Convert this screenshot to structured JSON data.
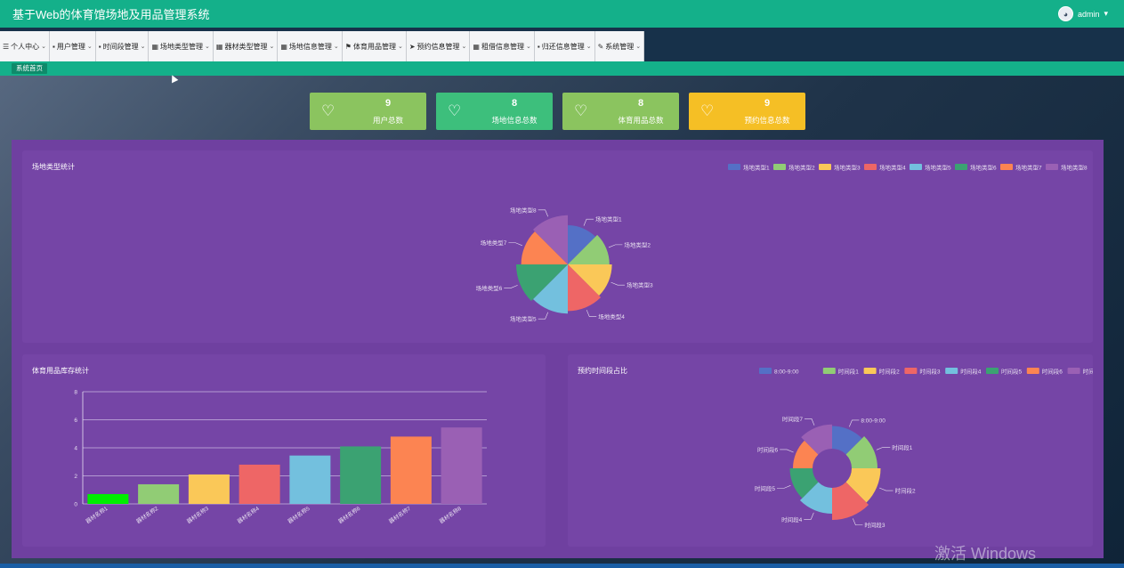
{
  "header": {
    "title": "基于Web的体育馆场地及用品管理系统",
    "user": "admin",
    "user_chevron": "▾"
  },
  "nav": [
    {
      "icon": "☰",
      "label": "个人中心"
    },
    {
      "icon": "▪",
      "label": "用户管理"
    },
    {
      "icon": "▪",
      "label": "时间段管理"
    },
    {
      "icon": "▦",
      "label": "场地类型管理"
    },
    {
      "icon": "▦",
      "label": "器材类型管理"
    },
    {
      "icon": "▦",
      "label": "场地信息管理"
    },
    {
      "icon": "⚑",
      "label": "体育用品管理"
    },
    {
      "icon": "➤",
      "label": "预约信息管理"
    },
    {
      "icon": "▦",
      "label": "租借信息管理"
    },
    {
      "icon": "▪",
      "label": "归还信息管理"
    },
    {
      "icon": "✎",
      "label": "系统管理"
    }
  ],
  "breadcrumb_tab": "系统首页",
  "stats": [
    {
      "value": "9",
      "label": "用户总数",
      "color": "#8bc45f"
    },
    {
      "value": "8",
      "label": "场地信息总数",
      "color": "#3dbf7c"
    },
    {
      "value": "8",
      "label": "体育用品总数",
      "color": "#8bc45f"
    },
    {
      "value": "9",
      "label": "预约信息总数",
      "color": "#f5bf25"
    }
  ],
  "colors": [
    "#5470c6",
    "#91cc75",
    "#fac858",
    "#ee6666",
    "#73c0de",
    "#3ba272",
    "#fc8452",
    "#9a60b4"
  ],
  "chart_data": [
    {
      "type": "pie",
      "title": "场地类型统计",
      "style": "rose",
      "labels": [
        "场地类型1",
        "场地类型2",
        "场地类型3",
        "场地类型4",
        "场地类型5",
        "场地类型6",
        "场地类型7",
        "场地类型8"
      ],
      "values": [
        50,
        52,
        54,
        56,
        58,
        60,
        56,
        58
      ],
      "legend": "top-right"
    },
    {
      "type": "bar",
      "title": "体育用品库存统计",
      "categories": [
        "器材名称1",
        "器材名称2",
        "器材名称3",
        "器材名称4",
        "器材名称5",
        "器材名称6",
        "器材名称7",
        "器材名称8"
      ],
      "values": [
        0.7,
        1.4,
        2.1,
        2.8,
        3.45,
        4.1,
        4.8,
        5.45
      ],
      "ylim": [
        0,
        8
      ],
      "yticks": [
        "0",
        "2",
        "4",
        "6",
        "8"
      ],
      "bar_colors": [
        "#00ee00",
        "#91cc75",
        "#fac858",
        "#ee6666",
        "#73c0de",
        "#3ba272",
        "#fc8452",
        "#9a60b4"
      ],
      "grid": true
    },
    {
      "type": "pie",
      "title": "预约时间段占比",
      "style": "rose-donut",
      "labels": [
        "8:00-9:00",
        "时间段1",
        "时间段2",
        "时间段3",
        "时间段4",
        "时间段5",
        "时间段6",
        "时间段7"
      ],
      "values": [
        54,
        56,
        58,
        60,
        56,
        54,
        52,
        55
      ],
      "legend": "top-right"
    }
  ],
  "watermark": "激活 Windows"
}
